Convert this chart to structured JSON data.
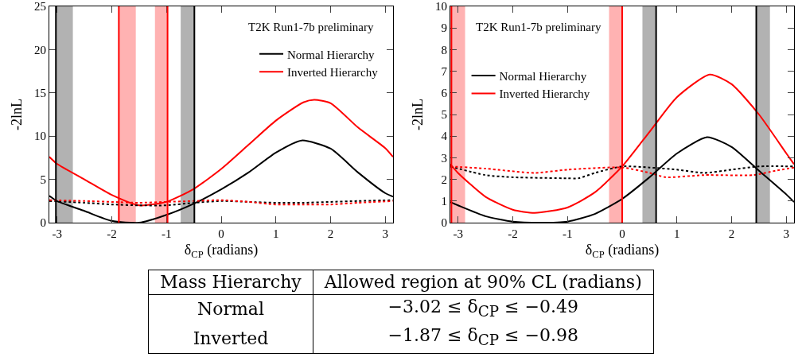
{
  "chart_data": [
    {
      "type": "line",
      "xlabel": "δ$_{CP}$ (radians)",
      "ylabel": "-2lnL",
      "xlim": [
        -3.14,
        3.14
      ],
      "ylim": [
        0,
        25
      ],
      "xticks": [
        -3,
        -2,
        -1,
        0,
        1,
        2,
        3
      ],
      "yticks": [
        0,
        5,
        10,
        15,
        20,
        25
      ],
      "grid": false,
      "legend": "top right",
      "annotations": [
        "T2K Run1-7b preliminary"
      ],
      "series": [
        {
          "name": "Normal Hierarchy",
          "color": "#000000",
          "line_style": "solid",
          "x": [
            -3.14,
            -3,
            -2.5,
            -2,
            -1.5,
            -1,
            -0.5,
            0,
            0.5,
            1,
            1.47,
            2,
            2.5,
            3,
            3.14
          ],
          "values": [
            3.1,
            2.5,
            1.35,
            0.2,
            0,
            0.9,
            2.2,
            3.85,
            5.8,
            8.1,
            9.5,
            8.55,
            5.8,
            3.4,
            3.0
          ]
        },
        {
          "name": "Inverted Hierarchy",
          "color": "#ff0000",
          "line_style": "solid",
          "x": [
            -3.14,
            -3,
            -2.5,
            -2,
            -1.5,
            -1,
            -0.5,
            0,
            0.5,
            1,
            1.5,
            1.7,
            2,
            2.5,
            3,
            3.14
          ],
          "values": [
            7.6,
            6.8,
            5.0,
            3.2,
            2.0,
            2.4,
            3.9,
            6.2,
            9.0,
            11.8,
            13.9,
            14.2,
            13.8,
            11.0,
            8.6,
            7.6
          ]
        },
        {
          "color": "#000000",
          "line_style": "dotted",
          "x": [
            -3.14,
            -2.5,
            -2,
            -1.5,
            -1,
            -0.5,
            0,
            0.5,
            1,
            1.5,
            2,
            2.5,
            3.14
          ],
          "values": [
            2.5,
            2.3,
            2.1,
            2.0,
            2.0,
            2.3,
            2.5,
            2.4,
            2.3,
            2.3,
            2.4,
            2.5,
            2.6
          ]
        },
        {
          "color": "#ff0000",
          "line_style": "dotted",
          "x": [
            -3.14,
            -2.5,
            -2,
            -1.5,
            -1,
            -0.5,
            0,
            0.5,
            1,
            1.5,
            2,
            2.5,
            3.14
          ],
          "values": [
            2.6,
            2.5,
            2.4,
            2.3,
            2.4,
            2.5,
            2.6,
            2.4,
            2.1,
            2.1,
            2.1,
            2.3,
            2.5
          ]
        }
      ],
      "ref_lines": [
        {
          "axis": "x",
          "value": -3.02,
          "color": "#000000"
        },
        {
          "axis": "x",
          "value": -0.49,
          "color": "#000000"
        },
        {
          "axis": "x",
          "value": -1.87,
          "color": "#ff0000"
        },
        {
          "axis": "x",
          "value": -0.98,
          "color": "#ff0000"
        }
      ],
      "bands": [
        {
          "axis": "x",
          "from": -3.02,
          "to": -2.71,
          "color": "#000000"
        },
        {
          "axis": "x",
          "from": -0.74,
          "to": -0.49,
          "color": "#000000"
        },
        {
          "axis": "x",
          "from": -1.87,
          "to": -1.56,
          "color": "#ff0000"
        },
        {
          "axis": "x",
          "from": -1.21,
          "to": -0.98,
          "color": "#ff0000"
        }
      ]
    },
    {
      "type": "line",
      "xlabel": "δ$_{CP}$ (radians)",
      "ylabel": "-2lnL",
      "xlim": [
        -3.14,
        3.14
      ],
      "ylim": [
        0,
        10
      ],
      "xticks": [
        -3,
        -2,
        -1,
        0,
        1,
        2,
        3
      ],
      "yticks": [
        0,
        1,
        2,
        3,
        4,
        5,
        6,
        7,
        8,
        9,
        10
      ],
      "grid": false,
      "legend": "top left",
      "annotations": [
        "T2K Run1-7b preliminary"
      ],
      "series": [
        {
          "name": "Normal Hierarchy",
          "color": "#000000",
          "line_style": "solid",
          "x": [
            -3.14,
            -3,
            -2.5,
            -2,
            -1.5,
            -1,
            -0.5,
            0,
            0.5,
            1,
            1.55,
            2,
            2.5,
            3,
            3.14
          ],
          "values": [
            0.95,
            0.8,
            0.3,
            0.05,
            0,
            0.05,
            0.4,
            1.1,
            2.1,
            3.2,
            3.95,
            3.5,
            2.4,
            1.3,
            0.95
          ]
        },
        {
          "name": "Inverted Hierarchy",
          "color": "#ff0000",
          "line_style": "solid",
          "x": [
            -3.14,
            -3,
            -2.5,
            -2,
            -1.6,
            -1,
            -0.5,
            0,
            0.5,
            1,
            1.6,
            2,
            2.5,
            3,
            3.14
          ],
          "values": [
            2.7,
            2.3,
            1.2,
            0.6,
            0.45,
            0.7,
            1.4,
            2.6,
            4.2,
            5.8,
            6.85,
            6.4,
            5.0,
            3.2,
            2.7
          ]
        },
        {
          "color": "#000000",
          "line_style": "dotted",
          "x": [
            -3.14,
            -2.5,
            -2,
            -1,
            -0.8,
            -0.5,
            0,
            0.5,
            1,
            1.5,
            2,
            2.5,
            3.14
          ],
          "values": [
            2.6,
            2.2,
            2.1,
            2.05,
            2.05,
            2.3,
            2.6,
            2.55,
            2.45,
            2.3,
            2.45,
            2.6,
            2.6
          ]
        },
        {
          "color": "#ff0000",
          "line_style": "dotted",
          "x": [
            -3.14,
            -2.5,
            -1.6,
            -1,
            0,
            0.5,
            0.8,
            1.5,
            2.4,
            2.8,
            3.14
          ],
          "values": [
            2.6,
            2.5,
            2.3,
            2.45,
            2.55,
            2.3,
            2.1,
            2.2,
            2.2,
            2.4,
            2.55
          ]
        }
      ],
      "ref_lines": [
        {
          "axis": "x",
          "value": -3.12,
          "color": "#ff0000"
        },
        {
          "axis": "x",
          "value": 0,
          "color": "#ff0000"
        },
        {
          "axis": "x",
          "value": 0.62,
          "color": "#000000"
        },
        {
          "axis": "x",
          "value": 2.45,
          "color": "#000000"
        }
      ],
      "bands": [
        {
          "axis": "x",
          "from": -3.12,
          "to": -2.87,
          "color": "#ff0000"
        },
        {
          "axis": "x",
          "from": -0.24,
          "to": 0,
          "color": "#ff0000"
        },
        {
          "axis": "x",
          "from": 0.37,
          "to": 0.62,
          "color": "#000000"
        },
        {
          "axis": "x",
          "from": 2.45,
          "to": 2.7,
          "color": "#000000"
        }
      ]
    },
    {
      "type": "other",
      "annotations": [
        "Mass Hierarchy",
        "Allowed region at 90% CL (radians)",
        "Normal",
        "−3.02 ≤ δ$_{CP}$ ≤ −0.49",
        "Inverted",
        "−1.87 ≤ δ$_{CP}$ ≤ −0.98"
      ]
    }
  ]
}
